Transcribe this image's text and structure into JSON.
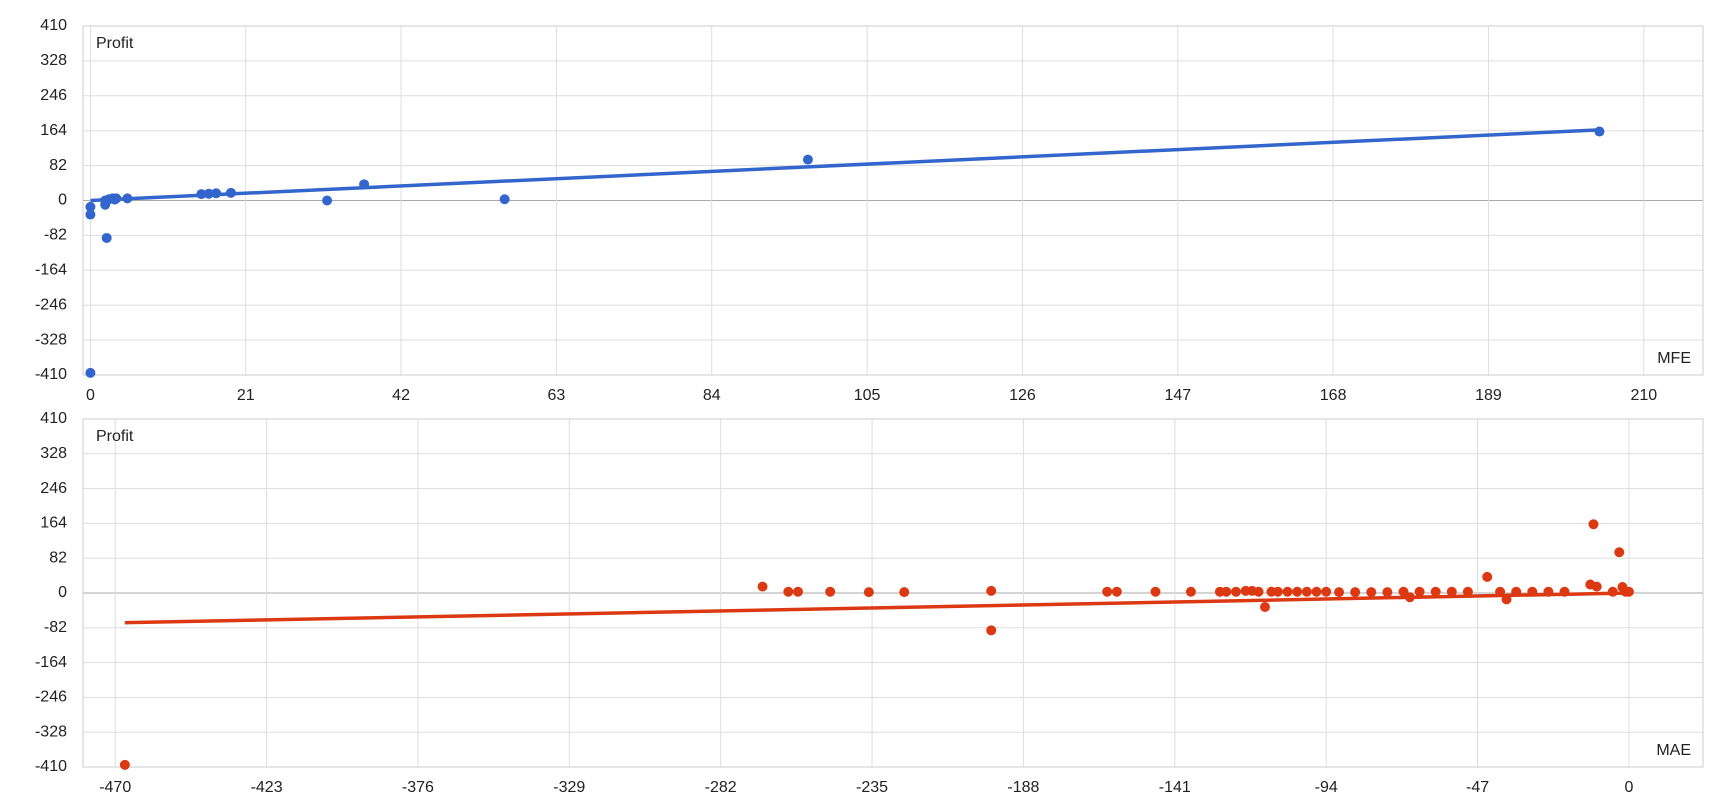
{
  "chart_data": [
    {
      "type": "scatter",
      "x_label": "MFE",
      "y_label": "Profit",
      "color": "#3366cc",
      "x": [
        0,
        0,
        0,
        2,
        2,
        2.2,
        2.5,
        3,
        3.3,
        3.5,
        5,
        15,
        16,
        17,
        19,
        32,
        37,
        56,
        97,
        204
      ],
      "values": [
        -15,
        -33,
        -405,
        0,
        -10,
        -88,
        3,
        5,
        2,
        5,
        5,
        15,
        16,
        17,
        18,
        0,
        38,
        3,
        96,
        162
      ],
      "trendline": {
        "x": [
          0,
          204
        ],
        "values": [
          0,
          166
        ]
      },
      "xlim": [
        -1,
        218
      ],
      "ylim": [
        -410,
        410
      ],
      "xticks": [
        0,
        21,
        42,
        63,
        84,
        105,
        126,
        147,
        168,
        189,
        210
      ],
      "yticks": [
        410,
        328,
        246,
        164,
        82,
        0,
        -82,
        -164,
        -246,
        -328,
        -410
      ],
      "grid": true
    },
    {
      "type": "scatter",
      "x_label": "MAE",
      "y_label": "Profit",
      "color": "#dc3912",
      "x": [
        -467,
        -269,
        -261,
        -258,
        -248,
        -236,
        -225,
        -198,
        -198,
        -162,
        -159,
        -147,
        -136,
        -127,
        -125,
        -122,
        -119,
        -117,
        -115,
        -113,
        -111,
        -109,
        -106,
        -103,
        -100,
        -97,
        -94,
        -90,
        -85,
        -80,
        -75,
        -70,
        -68,
        -65,
        -60,
        -55,
        -50,
        -44,
        -40,
        -38,
        -35,
        -30,
        -25,
        -20,
        -12,
        -11,
        -10,
        -5,
        -3,
        -2,
        -1,
        0
      ],
      "values": [
        -405,
        15,
        3,
        3,
        3,
        2,
        2,
        5,
        -88,
        3,
        3,
        3,
        3,
        3,
        3,
        3,
        5,
        5,
        3,
        -33,
        3,
        3,
        3,
        3,
        3,
        3,
        3,
        2,
        2,
        2,
        2,
        3,
        -10,
        3,
        3,
        3,
        3,
        38,
        3,
        -15,
        3,
        3,
        3,
        3,
        20,
        162,
        15,
        3,
        96,
        14,
        3,
        3
      ],
      "trendline": {
        "x": [
          -467,
          0
        ],
        "values": [
          -70,
          0
        ]
      },
      "xlim": [
        -480,
        23
      ],
      "ylim": [
        -410,
        410
      ],
      "xticks": [
        -470,
        -423,
        -376,
        -329,
        -282,
        -235,
        -188,
        -141,
        -94,
        -47,
        0
      ],
      "yticks": [
        410,
        328,
        246,
        164,
        82,
        0,
        -82,
        -164,
        -246,
        -328,
        -410
      ],
      "grid": true
    }
  ]
}
